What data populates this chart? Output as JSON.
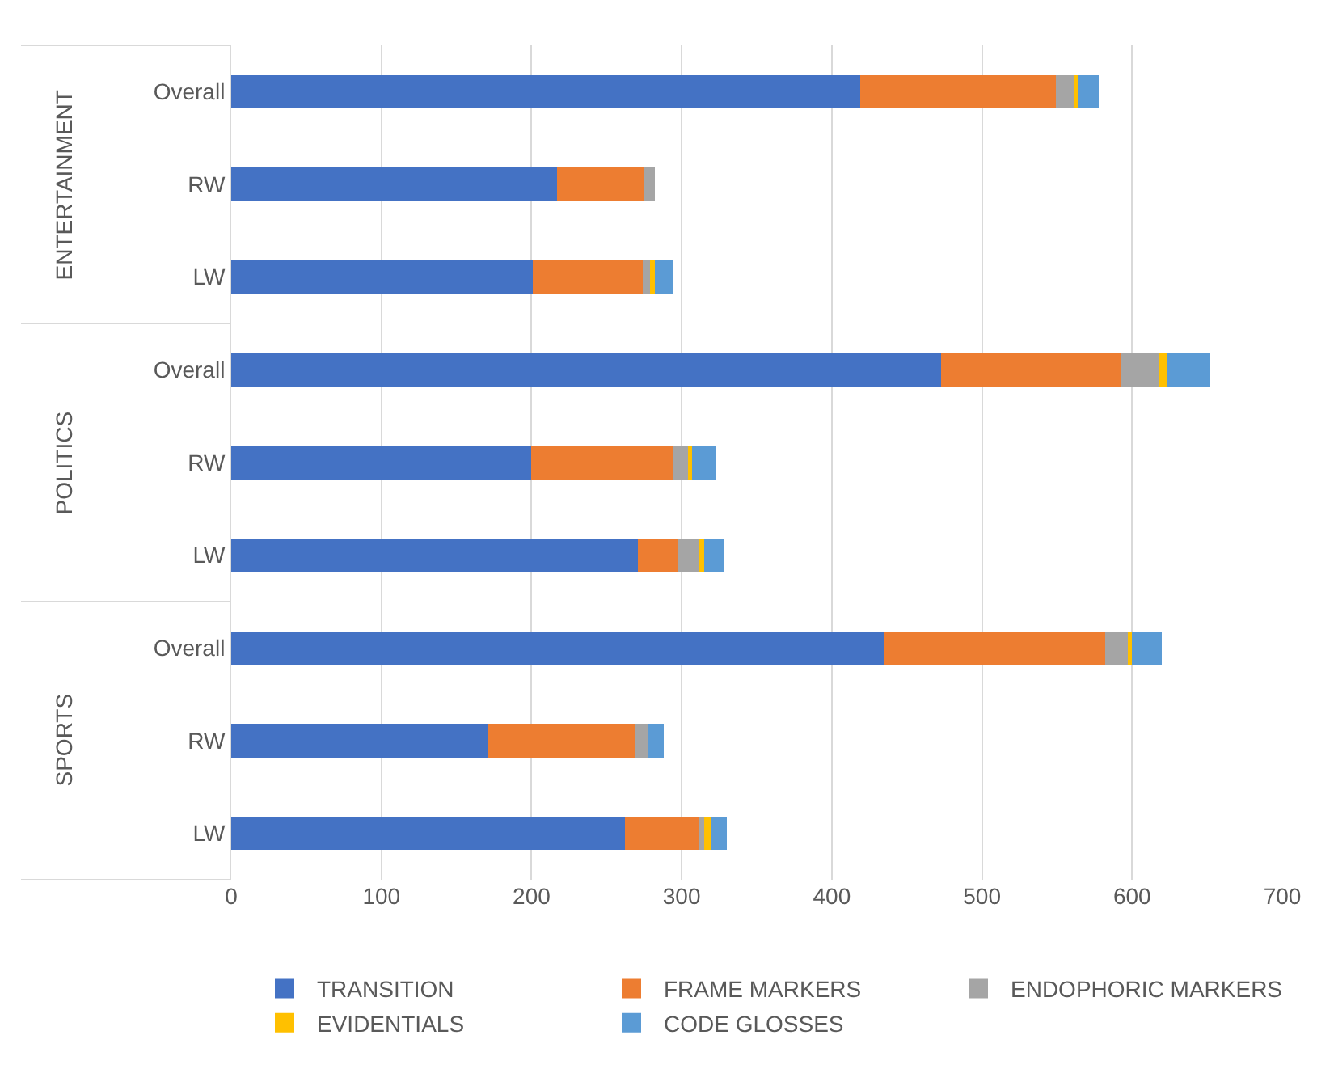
{
  "chart_data": {
    "type": "bar",
    "orientation": "horizontal",
    "stacked": true,
    "categories": [
      "Overall",
      "RW",
      "LW",
      "Overall",
      "RW",
      "LW",
      "Overall",
      "RW",
      "LW"
    ],
    "annotations": [
      "ENTERTAINMENT",
      "POLITICS",
      "SPORTS"
    ],
    "series": [
      {
        "name": "TRANSITION",
        "color": "#4472c4",
        "values": [
          419,
          217,
          201,
          473,
          200,
          271,
          435,
          171,
          262
        ]
      },
      {
        "name": "FRAME MARKERS",
        "color": "#ed7d31",
        "values": [
          130,
          58,
          73,
          120,
          94,
          26,
          147,
          98,
          49
        ]
      },
      {
        "name": "ENDOPHORIC MARKERS",
        "color": "#a5a5a5",
        "values": [
          12,
          7,
          5,
          25,
          10,
          14,
          15,
          9,
          4
        ]
      },
      {
        "name": "EVIDENTIALS",
        "color": "#ffc000",
        "values": [
          3,
          0,
          3,
          5,
          3,
          4,
          3,
          0,
          5
        ]
      },
      {
        "name": "CODE GLOSSES",
        "color": "#5b9bd5",
        "values": [
          14,
          0,
          12,
          29,
          16,
          13,
          20,
          10,
          10
        ]
      }
    ],
    "xlim": [
      0,
      700
    ],
    "xticks": [
      0,
      100,
      200,
      300,
      400,
      500,
      600,
      700
    ],
    "grid": "x",
    "legend": "bottom"
  }
}
